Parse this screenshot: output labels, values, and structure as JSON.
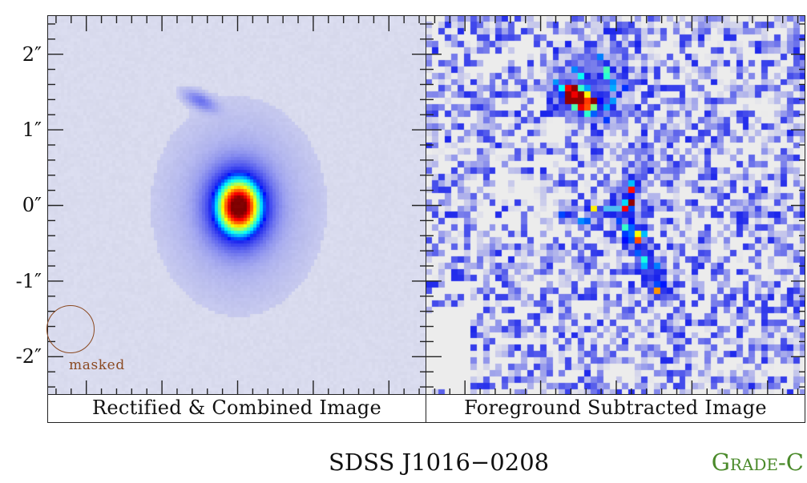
{
  "figure": {
    "object_name": "SDSS J1016−0208",
    "grade": "Grade-C",
    "grade_color": "#4a8a2a",
    "annotation_color": "#8b4a22"
  },
  "axis": {
    "unit_symbol": "″",
    "y_tick_labels": [
      "2″",
      "1″",
      "0″",
      "-1″",
      "-2″"
    ],
    "y_tick_values": [
      2,
      1,
      0,
      -1,
      -2
    ],
    "major_tick_step_arcsec": 1,
    "minor_tick_step_arcsec": 0.2,
    "range_arcsec": [
      -2.5,
      2.5
    ]
  },
  "panels": [
    {
      "id": "left",
      "caption": "Rectified & Combined Image",
      "background_color": "#d9dbee",
      "mask": {
        "label": "masked",
        "center_arcsec": [
          -2.2,
          -1.65
        ],
        "radius_arcsec": 0.32
      },
      "sources": [
        {
          "name": "foreground-galaxy",
          "center_arcsec": [
            0.0,
            0.0
          ],
          "peak": "dark-red"
        },
        {
          "name": "faint-arc",
          "center_arcsec": [
            -0.55,
            1.4
          ],
          "peak": "blue"
        }
      ]
    },
    {
      "id": "right",
      "caption": "Foreground Subtracted Image",
      "background_color": "#ececec",
      "sources": [
        {
          "name": "residual-arc",
          "center_arcsec": [
            -0.6,
            1.4
          ],
          "peak": "dark-red"
        },
        {
          "name": "residual-filament",
          "center_arcsec": [
            0.1,
            0.0
          ],
          "peak": "cyan"
        }
      ]
    }
  ]
}
